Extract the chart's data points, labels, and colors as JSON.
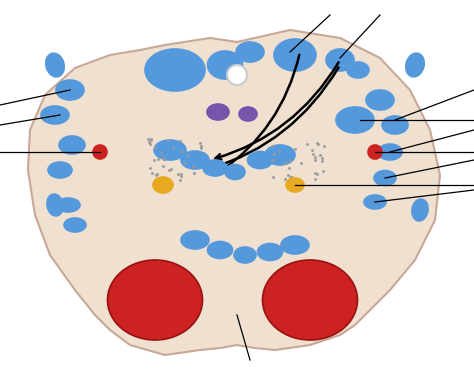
{
  "background": "#ffffff",
  "body_color": "#f0e0d0",
  "body_outline": "#c8a898",
  "blue_color": "#5599dd",
  "blue_dark": "#4488cc",
  "red_color": "#cc2222",
  "red_dark": "#aa1111",
  "purple_color": "#7755aa",
  "orange_color": "#e8a820",
  "white_circle_color": "#ffffff",
  "dot_color": "#aaaaaa",
  "arrow_color": "#111111",
  "line_color": "#111111",
  "figsize": [
    4.74,
    3.7
  ],
  "dpi": 100
}
